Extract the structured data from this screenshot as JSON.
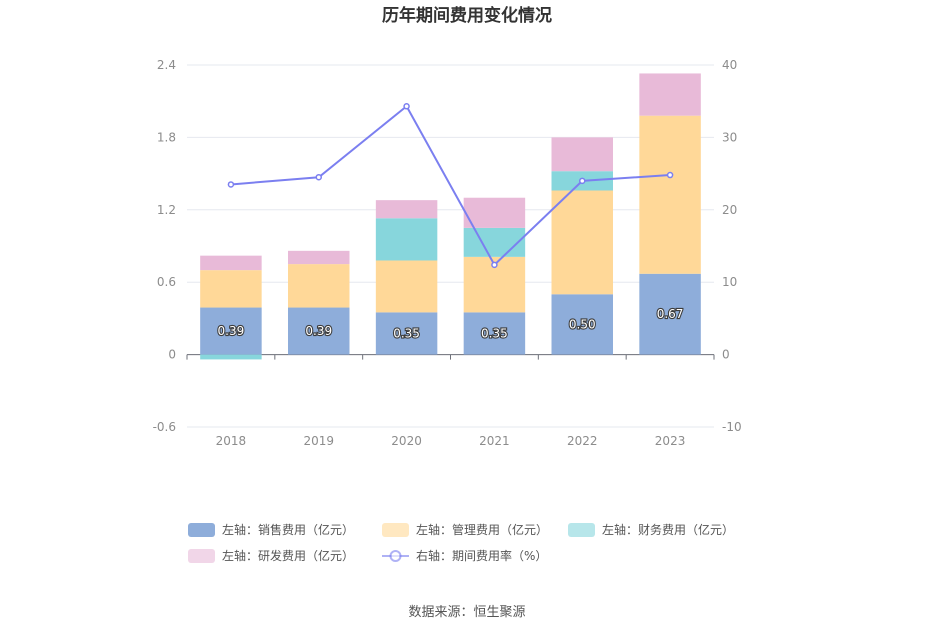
{
  "chart_data": {
    "type": "bar",
    "title": "历年期间费用变化情况",
    "categories": [
      "2018",
      "2019",
      "2020",
      "2021",
      "2022",
      "2023"
    ],
    "series": [
      {
        "name": "左轴：销售费用（亿元）",
        "axis": "left",
        "kind": "bar",
        "color": "#8eadda",
        "values": [
          0.39,
          0.39,
          0.35,
          0.35,
          0.5,
          0.67
        ],
        "labels": [
          "0.39",
          "0.39",
          "0.35",
          "0.35",
          "0.50",
          "0.67"
        ]
      },
      {
        "name": "左轴：管理费用（亿元）",
        "axis": "left",
        "kind": "bar",
        "color": "#ffd898",
        "values": [
          0.31,
          0.36,
          0.43,
          0.46,
          0.86,
          1.31
        ]
      },
      {
        "name": "左轴：财务费用（亿元）",
        "axis": "left",
        "kind": "bar",
        "color": "#87d6dc",
        "values": [
          -0.04,
          0.0,
          0.35,
          0.24,
          0.16,
          0.0
        ]
      },
      {
        "name": "左轴：研发费用（亿元）",
        "axis": "left",
        "kind": "bar",
        "color": "#e8bad8",
        "values": [
          0.12,
          0.11,
          0.15,
          0.25,
          0.28,
          0.35
        ]
      },
      {
        "name": "右轴：期间费用率（%）",
        "axis": "right",
        "kind": "line",
        "color": "#7b7ff0",
        "values": [
          23.5,
          24.5,
          34.3,
          12.4,
          24.0,
          24.8
        ]
      }
    ],
    "left_axis": {
      "ylim": [
        -0.6,
        2.4
      ],
      "ticks": [
        "-0.6",
        "0",
        "0.6",
        "1.2",
        "1.8",
        "2.4"
      ]
    },
    "right_axis": {
      "ylim": [
        -10,
        40
      ],
      "ticks": [
        "-10",
        "0",
        "10",
        "20",
        "30",
        "40"
      ]
    },
    "grid": true,
    "legend_position": "bottom"
  },
  "source": "数据来源：恒生聚源"
}
